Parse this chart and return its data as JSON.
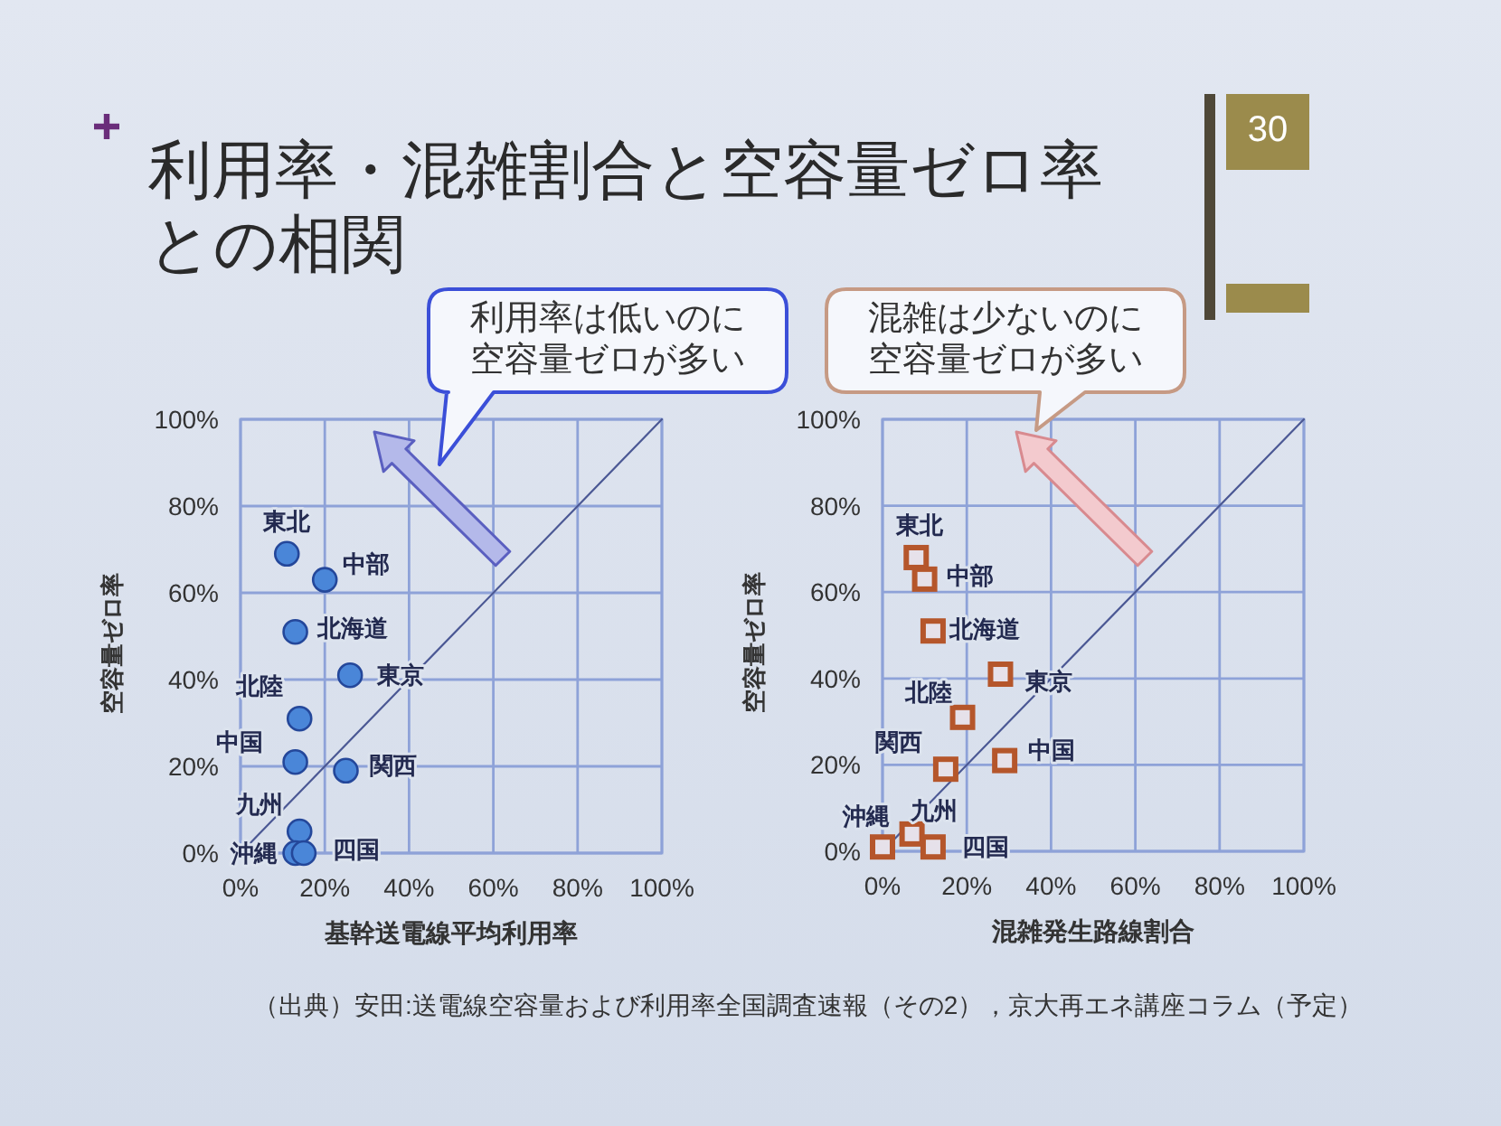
{
  "chart_data": [
    {
      "type": "scatter",
      "title": "利用率・混雑割合と空容量ゼロ率との相関",
      "xlabel": "基幹送電線平均利用率",
      "ylabel": "空容量ゼロ率",
      "xlim": [
        0,
        100
      ],
      "ylim": [
        0,
        100
      ],
      "xticks": [
        {
          "value": 0,
          "label": "0%"
        },
        {
          "value": 20,
          "label": "20%"
        },
        {
          "value": 40,
          "label": "40%"
        },
        {
          "value": 60,
          "label": "60%"
        },
        {
          "value": 80,
          "label": "80%"
        },
        {
          "value": 100,
          "label": "100%"
        }
      ],
      "yticks": [
        {
          "value": 0,
          "label": "0%"
        },
        {
          "value": 20,
          "label": "20%"
        },
        {
          "value": 40,
          "label": "40%"
        },
        {
          "value": 60,
          "label": "60%"
        },
        {
          "value": 80,
          "label": "80%"
        },
        {
          "value": 100,
          "label": "100%"
        }
      ],
      "grid": true,
      "series": [
        {
          "type": "line",
          "color": "#4b5894",
          "x": [
            0,
            100
          ],
          "values": [
            0,
            100
          ]
        },
        {
          "type": "scatter",
          "marker": "circle",
          "color": "#4a86d8",
          "x": [
            11,
            20,
            13,
            26,
            14,
            13,
            25,
            14,
            13,
            15
          ],
          "values": [
            69,
            63,
            51,
            41,
            31,
            21,
            19,
            5,
            0,
            0
          ]
        }
      ],
      "annotations": [
        "利用率は低いのに空容量ゼロが多い",
        {
          "text": "東北",
          "x": 11,
          "y": 69
        },
        {
          "text": "中部",
          "x": 20,
          "y": 63
        },
        {
          "text": "北海道",
          "x": 13,
          "y": 51
        },
        {
          "text": "東京",
          "x": 26,
          "y": 41
        },
        {
          "text": "北陸",
          "x": 14,
          "y": 31
        },
        {
          "text": "中国",
          "x": 13,
          "y": 21
        },
        {
          "text": "関西",
          "x": 25,
          "y": 19
        },
        {
          "text": "九州",
          "x": 14,
          "y": 5
        },
        {
          "text": "沖縄",
          "x": 13,
          "y": 0
        },
        {
          "text": "四国",
          "x": 15,
          "y": 0
        }
      ]
    },
    {
      "type": "scatter",
      "xlabel": "混雑発生路線割合",
      "ylabel": "空容量ゼロ率",
      "xlim": [
        0,
        100
      ],
      "ylim": [
        0,
        100
      ],
      "xticks": [
        {
          "value": 0,
          "label": "0%"
        },
        {
          "value": 20,
          "label": "20%"
        },
        {
          "value": 40,
          "label": "40%"
        },
        {
          "value": 60,
          "label": "60%"
        },
        {
          "value": 80,
          "label": "80%"
        },
        {
          "value": 100,
          "label": "100%"
        }
      ],
      "yticks": [
        {
          "value": 0,
          "label": "0%"
        },
        {
          "value": 20,
          "label": "20%"
        },
        {
          "value": 40,
          "label": "40%"
        },
        {
          "value": 60,
          "label": "60%"
        },
        {
          "value": 80,
          "label": "80%"
        },
        {
          "value": 100,
          "label": "100%"
        }
      ],
      "grid": true,
      "series": [
        {
          "type": "line",
          "color": "#4b5894",
          "x": [
            0,
            100
          ],
          "values": [
            0,
            100
          ]
        },
        {
          "type": "scatter",
          "marker": "square",
          "color": "#b5562b",
          "x": [
            8,
            10,
            12,
            28,
            19,
            15,
            29,
            7,
            0,
            12
          ],
          "values": [
            68,
            63,
            51,
            41,
            31,
            19,
            21,
            4,
            1,
            1
          ]
        }
      ],
      "annotations": [
        "混雑は少ないのに空容量ゼロが多い",
        "30",
        "（出典）安田:送電線空容量および利用率全国調査速報（その2），京大再エネ講座コラム（予定）",
        {
          "text": "東北",
          "x": 8,
          "y": 68
        },
        {
          "text": "中部",
          "x": 10,
          "y": 63
        },
        {
          "text": "北海道",
          "x": 12,
          "y": 51
        },
        {
          "text": "東京",
          "x": 28,
          "y": 41
        },
        {
          "text": "北陸",
          "x": 19,
          "y": 31
        },
        {
          "text": "関西",
          "x": 15,
          "y": 19
        },
        {
          "text": "中国",
          "x": 29,
          "y": 21
        },
        {
          "text": "九州",
          "x": 7,
          "y": 4
        },
        {
          "text": "沖縄",
          "x": 0,
          "y": 1
        },
        {
          "text": "四国",
          "x": 12,
          "y": 1
        }
      ]
    }
  ]
}
